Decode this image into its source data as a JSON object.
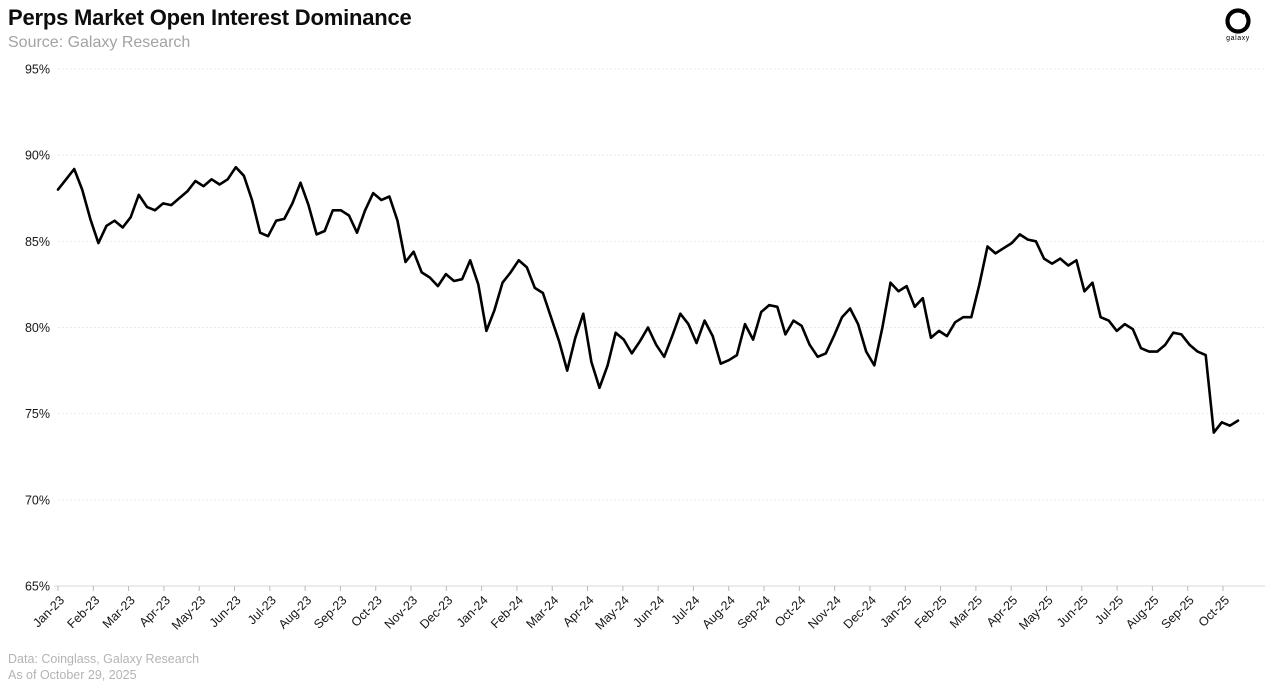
{
  "header": {
    "title": "Perps Market Open Interest Dominance",
    "subtitle": "Source: Galaxy Research",
    "logo_text": "galaxy"
  },
  "footer": {
    "data_source": "Data: Coinglass, Galaxy Research",
    "as_of": "As of October 29, 2025"
  },
  "colors": {
    "background": "#ffffff",
    "line": "#000000",
    "grid": "#e2e2e2",
    "axis": "#d8d8d8",
    "tick": "#b9b9b9",
    "axis_label": "#161616"
  },
  "chart_data": {
    "type": "line",
    "title": "Perps Market Open Interest Dominance",
    "series_name": "Perps market open interest dominance (%)",
    "x_frequency": "weekly",
    "x_tick_labels": [
      "Jan-23",
      "Feb-23",
      "Mar-23",
      "Apr-23",
      "May-23",
      "Jun-23",
      "Jul-23",
      "Aug-23",
      "Sep-23",
      "Oct-23",
      "Nov-23",
      "Dec-23",
      "Jan-24",
      "Feb-24",
      "Mar-24",
      "Apr-24",
      "May-24",
      "Jun-24",
      "Jul-24",
      "Aug-24",
      "Sep-24",
      "Oct-24",
      "Nov-24",
      "Dec-24",
      "Jan-25",
      "Feb-25",
      "Mar-25",
      "Apr-25",
      "May-25",
      "Jun-25",
      "Jul-25",
      "Aug-25",
      "Sep-25",
      "Oct-25"
    ],
    "y_tick_labels": [
      "65%",
      "70%",
      "75%",
      "80%",
      "85%",
      "90%",
      "95%"
    ],
    "y_ticks": [
      65,
      70,
      75,
      80,
      85,
      90,
      95
    ],
    "ylim": [
      65,
      95
    ],
    "grid": "horizontal-dotted",
    "legend": "none",
    "values": [
      88.0,
      88.6,
      89.2,
      88.0,
      86.3,
      84.9,
      85.9,
      86.2,
      85.8,
      86.4,
      87.7,
      87.0,
      86.8,
      87.2,
      87.1,
      87.5,
      87.9,
      88.5,
      88.2,
      88.6,
      88.3,
      88.6,
      89.3,
      88.8,
      87.4,
      85.5,
      85.3,
      86.2,
      86.3,
      87.2,
      88.4,
      87.1,
      85.4,
      85.6,
      86.8,
      86.8,
      86.5,
      85.5,
      86.8,
      87.8,
      87.4,
      87.6,
      86.2,
      83.8,
      84.4,
      83.2,
      82.9,
      82.4,
      83.1,
      82.7,
      82.8,
      83.9,
      82.5,
      79.8,
      81.0,
      82.6,
      83.2,
      83.9,
      83.5,
      82.3,
      82.0,
      80.6,
      79.2,
      77.5,
      79.4,
      80.8,
      78.0,
      76.5,
      77.8,
      79.7,
      79.3,
      78.5,
      79.2,
      80.0,
      79.0,
      78.3,
      79.5,
      80.8,
      80.2,
      79.1,
      80.4,
      79.5,
      77.9,
      78.1,
      78.4,
      80.2,
      79.3,
      80.9,
      81.3,
      81.2,
      79.6,
      80.4,
      80.1,
      79.0,
      78.3,
      78.5,
      79.5,
      80.6,
      81.1,
      80.2,
      78.6,
      77.8,
      80.0,
      82.6,
      82.1,
      82.4,
      81.2,
      81.7,
      79.4,
      79.8,
      79.5,
      80.3,
      80.6,
      80.6,
      82.5,
      84.7,
      84.3,
      84.6,
      84.9,
      85.4,
      85.1,
      85.0,
      84.0,
      83.7,
      84.0,
      83.6,
      83.9,
      82.1,
      82.6,
      80.6,
      80.4,
      79.8,
      80.2,
      79.9,
      78.8,
      78.6,
      78.6,
      79.0,
      79.7,
      79.6,
      79.0,
      78.6,
      78.4,
      73.9,
      74.5,
      74.3,
      74.6
    ]
  }
}
